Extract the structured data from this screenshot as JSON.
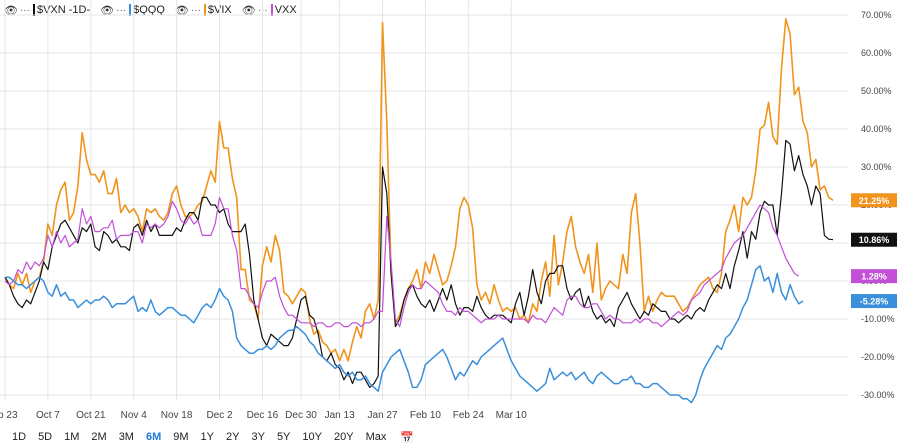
{
  "legend": [
    {
      "label": "$VXN -1D-",
      "color": "#111111"
    },
    {
      "label": "$QQQ",
      "color": "#3a8fdb"
    },
    {
      "label": "$VIX",
      "color": "#f0941d"
    },
    {
      "label": "VXX",
      "color": "#c24fd6"
    }
  ],
  "legend_menu_glyph": "···",
  "ranges": [
    "1D",
    "5D",
    "1M",
    "2M",
    "3M",
    "6M",
    "9M",
    "1Y",
    "2Y",
    "3Y",
    "5Y",
    "10Y",
    "20Y",
    "Max"
  ],
  "active_range": "6M",
  "calendar_icon": "calendar-icon",
  "chart_data": {
    "type": "line",
    "x_ticks": [
      {
        "label": "ep 23",
        "i": 0
      },
      {
        "label": "Oct 7",
        "i": 10
      },
      {
        "label": "Oct 21",
        "i": 20
      },
      {
        "label": "Nov 4",
        "i": 30
      },
      {
        "label": "Nov 18",
        "i": 40
      },
      {
        "label": "Dec 2",
        "i": 50
      },
      {
        "label": "Dec 16",
        "i": 60
      },
      {
        "label": "Dec 30",
        "i": 69
      },
      {
        "label": "Jan 13",
        "i": 78
      },
      {
        "label": "Jan 27",
        "i": 88
      },
      {
        "label": "Feb 10",
        "i": 98
      },
      {
        "label": "Feb 24",
        "i": 108
      },
      {
        "label": "Mar 10",
        "i": 118
      }
    ],
    "y_ticks": [
      "70.00%",
      "60.00%",
      "50.00%",
      "40.00%",
      "30.00%",
      "20.00%",
      "10.00%",
      "0.00%",
      "-10.00%",
      "-20.00%",
      "-30.00%"
    ],
    "y_tick_values": [
      70,
      60,
      50,
      40,
      30,
      20,
      10,
      0,
      -10,
      -20,
      -30
    ],
    "ylim": [
      -30,
      70
    ],
    "grid": true,
    "series": [
      {
        "name": "$VIX",
        "color": "#f0941d",
        "last_label": "21.25%",
        "last": 21.25,
        "values": [
          1,
          -1,
          -2,
          2,
          -1,
          2,
          -3,
          0,
          1,
          5,
          15,
          12,
          20,
          24,
          26,
          16,
          18,
          25,
          39,
          32,
          28,
          28,
          26,
          29,
          23,
          23,
          27,
          18,
          20,
          18,
          19,
          17,
          13,
          19,
          18,
          19,
          17,
          16,
          18,
          23,
          25,
          20,
          17,
          17,
          18,
          20,
          21,
          25,
          29,
          26,
          42,
          35,
          35,
          27,
          22,
          3,
          3,
          -5,
          -6,
          -10,
          4,
          9,
          5,
          12,
          8,
          -3,
          -4,
          -6,
          -4,
          -2,
          -3,
          -10,
          -14,
          -13,
          -16,
          -17,
          -19,
          -18,
          -21,
          -18,
          -21,
          -16,
          -12,
          -15,
          -8,
          -6,
          -10,
          -5,
          68,
          42,
          2,
          -11,
          -9,
          -5,
          -2,
          0,
          3,
          -2,
          5,
          2,
          7,
          3,
          -1,
          0,
          4,
          9,
          19,
          22,
          20,
          14,
          -1,
          -5,
          -3,
          -6,
          -1,
          -5,
          -8,
          -7,
          -8,
          -7,
          -10,
          -9,
          -11,
          -6,
          -8,
          0,
          5,
          -4,
          12,
          -1,
          5,
          13,
          17,
          9,
          5,
          2,
          7,
          -3,
          10,
          -5,
          -2,
          0,
          -1,
          -2,
          7,
          2,
          18,
          23,
          10,
          -8,
          -4,
          -8,
          -5,
          -3,
          -4,
          -4,
          -4,
          -6,
          -8,
          -7,
          -5,
          -3,
          -1,
          0,
          1,
          -2,
          -3,
          2,
          13,
          16,
          20,
          13,
          22,
          20,
          22,
          29,
          40,
          41,
          47,
          38,
          36,
          56,
          69,
          65,
          49,
          51,
          42,
          39,
          30,
          32,
          24,
          25,
          22,
          21.25
        ]
      },
      {
        "name": "$VXN -1D-",
        "color": "#111111",
        "last_label": "10.86%",
        "last": 10.86,
        "values": [
          1,
          -1,
          -4,
          -6,
          -7,
          -5,
          -6,
          -3,
          0,
          5,
          3,
          9,
          12,
          15,
          16,
          14,
          12,
          10,
          14,
          13,
          15,
          9,
          8,
          13,
          12,
          10,
          11,
          9,
          9,
          8,
          14,
          15,
          12,
          16,
          13,
          15,
          12,
          12,
          12,
          12,
          14,
          13,
          16,
          18,
          18,
          16,
          22,
          22,
          20,
          20,
          18,
          19,
          15,
          13,
          13,
          13,
          15,
          7,
          -5,
          -10,
          -15,
          -17,
          -14,
          -15,
          -16,
          -17,
          -17,
          -15,
          -10,
          -5,
          -4,
          -9,
          -10,
          -14,
          -20,
          -21,
          -19,
          -22,
          -23,
          -26,
          -24,
          -27,
          -24,
          -24,
          -26,
          -28,
          -27,
          -25,
          30,
          23,
          2,
          -12,
          -10,
          -5,
          -2,
          -1,
          -4,
          -6,
          -7,
          -5,
          -8,
          -5,
          -2,
          -5,
          -1,
          -6,
          -9,
          -7,
          -7,
          -8,
          -4,
          -7,
          -9,
          -10,
          -9,
          -9,
          -9,
          -10,
          -11,
          -6,
          -3,
          -9,
          -4,
          3,
          -3,
          -6,
          0,
          2,
          2,
          4,
          4,
          -2,
          -5,
          -3,
          -2,
          -7,
          -4,
          -8,
          -10,
          -9,
          -11,
          -10,
          -12,
          -7,
          -5,
          -3,
          -6,
          -8,
          -10,
          -8,
          -9,
          -6,
          -7,
          -8,
          -8,
          -10,
          -10,
          -11,
          -10,
          -9,
          -10,
          -8,
          -7,
          -8,
          -5,
          -3,
          -1,
          -2,
          2,
          -2,
          4,
          8,
          13,
          6,
          13,
          11,
          18,
          21,
          20,
          20,
          12,
          23,
          37,
          36,
          29,
          33,
          28,
          25,
          20,
          25,
          23,
          12,
          11,
          10.86
        ]
      },
      {
        "name": "VXX",
        "color": "#c24fd6",
        "last_label": "1.28%",
        "last": 1.28,
        "values": [
          0,
          -1,
          0,
          3,
          2,
          5,
          3,
          5,
          4,
          6,
          12,
          9,
          13,
          10,
          12,
          9,
          10,
          11,
          19,
          15,
          17,
          13,
          13,
          14,
          14,
          16,
          11,
          12,
          12,
          12,
          13,
          13,
          10,
          15,
          14,
          15,
          14,
          15,
          17,
          21,
          19,
          16,
          15,
          17,
          15,
          16,
          12,
          12,
          12,
          15,
          22,
          19,
          19,
          12,
          8,
          -2,
          -2,
          -4,
          -6,
          -7,
          -3,
          0,
          0,
          1,
          -4,
          -7,
          -9,
          -9,
          -10,
          -11,
          -11,
          -11,
          -12,
          -11,
          -11,
          -12,
          -12,
          -11,
          -11,
          -12,
          -12,
          -11,
          -11,
          -12,
          -11,
          -11,
          -10,
          -8,
          -8,
          17,
          5,
          -10,
          -12,
          -7,
          -3,
          -1,
          -2,
          -2,
          0,
          -1,
          -2,
          -3,
          -6,
          -8,
          -8,
          -9,
          -7,
          -8,
          -8,
          -9,
          -10,
          -11,
          -10,
          -10,
          -10,
          -9,
          -10,
          -10,
          -10,
          -10,
          -10,
          -10,
          -11,
          -9,
          -10,
          -10,
          -11,
          -9,
          -7,
          -8,
          -9,
          -5,
          -4,
          -4,
          -6,
          -7,
          -7,
          -6,
          -6,
          -8,
          -10,
          -9,
          -10,
          -10,
          -11,
          -11,
          -11,
          -10,
          -11,
          -10,
          -10,
          -11,
          -11,
          -12,
          -11,
          -10,
          -9,
          -8,
          -9,
          -8,
          -5,
          -4,
          -3,
          -1,
          0,
          1,
          2,
          3,
          6,
          8,
          10,
          11,
          12,
          14,
          16,
          18,
          20,
          19,
          18,
          14,
          12,
          9,
          6,
          4,
          2,
          1.28
        ]
      },
      {
        "name": "$QQQ",
        "color": "#3a8fdb",
        "last_label": "-5.28%",
        "last": -5.28,
        "values": [
          1,
          1,
          0,
          -1,
          -1,
          -2,
          -1,
          0,
          1,
          0,
          -3,
          -4,
          -1,
          -4,
          -3,
          -5,
          -5,
          -7,
          -6,
          -5,
          -6,
          -5,
          -5,
          -4,
          -5,
          -7,
          -6,
          -6,
          -6,
          -5,
          -4,
          -8,
          -7,
          -8,
          -5,
          -8,
          -9,
          -8,
          -7,
          -7,
          -8,
          -9,
          -9,
          -10,
          -11,
          -9,
          -7,
          -6,
          -7,
          -5,
          -2,
          -4,
          -5,
          -8,
          -15,
          -17,
          -18,
          -19,
          -19,
          -18,
          -18,
          -17,
          -18,
          -17,
          -15,
          -14,
          -13,
          -13,
          -12,
          -13,
          -14,
          -16,
          -17,
          -19,
          -20,
          -21,
          -22,
          -23,
          -22,
          -24,
          -25,
          -24,
          -26,
          -26,
          -25,
          -27,
          -28,
          -29,
          -24,
          -22,
          -20,
          -19,
          -18,
          -21,
          -24,
          -28,
          -28,
          -26,
          -22,
          -21,
          -20,
          -19,
          -18,
          -20,
          -23,
          -26,
          -24,
          -25,
          -23,
          -21,
          -22,
          -20,
          -19,
          -18,
          -17,
          -16,
          -15,
          -18,
          -21,
          -23,
          -25,
          -26,
          -27,
          -28,
          -29,
          -28,
          -27,
          -23,
          -26,
          -25,
          -24,
          -25,
          -24,
          -26,
          -25,
          -24,
          -26,
          -27,
          -25,
          -24,
          -25,
          -26,
          -27,
          -27,
          -26,
          -26,
          -25,
          -27,
          -27,
          -28,
          -28,
          -27,
          -27,
          -28,
          -29,
          -30,
          -30,
          -30,
          -31,
          -31,
          -32,
          -30,
          -26,
          -23,
          -21,
          -19,
          -17,
          -18,
          -15,
          -14,
          -12,
          -10,
          -7,
          -5,
          -1,
          3,
          4,
          0,
          1,
          -3,
          2,
          -3,
          -5,
          -1,
          -4,
          -6,
          -5.28
        ]
      }
    ]
  }
}
